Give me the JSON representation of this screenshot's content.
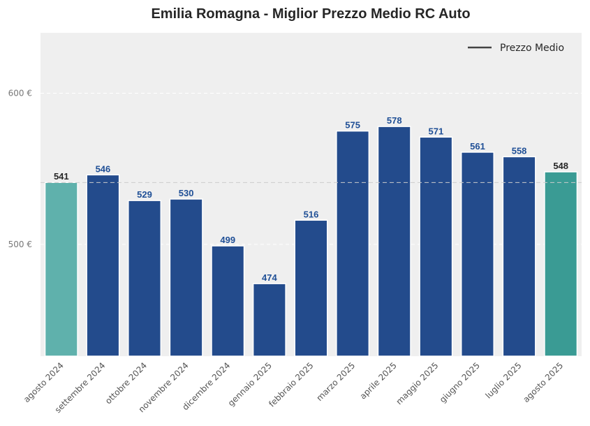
{
  "chart_data": {
    "type": "bar",
    "title": "Emilia Romagna - Miglior Prezzo Medio RC Auto",
    "categories": [
      "agosto 2024",
      "settembre 2024",
      "ottobre 2024",
      "novembre 2024",
      "dicembre 2024",
      "gennaio 2025",
      "febbraio 2025",
      "marzo 2025",
      "aprile 2025",
      "maggio 2025",
      "giugno 2025",
      "luglio 2025",
      "agosto 2025"
    ],
    "values": [
      541,
      546,
      529,
      530,
      499,
      474,
      516,
      575,
      578,
      571,
      561,
      558,
      548
    ],
    "value_labels": [
      "541",
      "546",
      "529",
      "530",
      "499",
      "474",
      "516",
      "575",
      "578",
      "571",
      "561",
      "558",
      "548"
    ],
    "bar_colors": [
      "#5fb1ac",
      "#234b8c",
      "#234b8c",
      "#234b8c",
      "#234b8c",
      "#234b8c",
      "#234b8c",
      "#234b8c",
      "#234b8c",
      "#234b8c",
      "#234b8c",
      "#234b8c",
      "#3a9b94"
    ],
    "label_colors": [
      "#262626",
      "#1f4f96",
      "#1f4f96",
      "#1f4f96",
      "#1f4f96",
      "#1f4f96",
      "#1f4f96",
      "#1f4f96",
      "#1f4f96",
      "#1f4f96",
      "#1f4f96",
      "#1f4f96",
      "#262626"
    ],
    "yticks": [
      500,
      600
    ],
    "ytick_labels": [
      "500 €",
      "600 €"
    ],
    "ylim": [
      426,
      640
    ],
    "reference_line": {
      "value": 540.9,
      "color": "#cccccc"
    },
    "legend": {
      "label": "Prezzo Medio",
      "position": "top-right",
      "line_color": "#444444"
    },
    "grid": true,
    "background": "#efefef",
    "xlabel": "",
    "ylabel": ""
  }
}
